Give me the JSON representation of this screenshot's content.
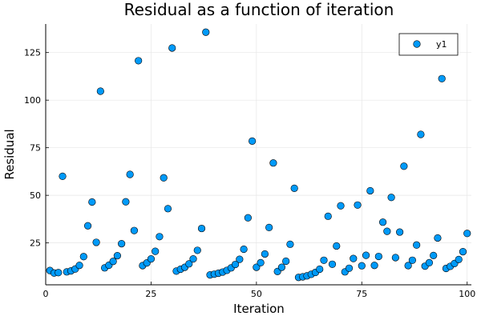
{
  "chart_data": {
    "type": "scatter",
    "title": "Residual as a function of iteration",
    "xlabel": "Iteration",
    "ylabel": "Residual",
    "xlim": [
      0,
      101
    ],
    "ylim": [
      3,
      140
    ],
    "xticks": [
      0,
      25,
      50,
      75,
      100
    ],
    "yticks": [
      25,
      50,
      75,
      100,
      125
    ],
    "grid": true,
    "legend_position": "top-right",
    "series": [
      {
        "name": "y1",
        "color": "#009af9",
        "x": [
          1,
          2,
          3,
          4,
          5,
          6,
          7,
          8,
          9,
          10,
          11,
          12,
          13,
          14,
          15,
          16,
          17,
          18,
          19,
          20,
          21,
          22,
          23,
          24,
          25,
          26,
          27,
          28,
          29,
          30,
          31,
          32,
          33,
          34,
          35,
          36,
          37,
          38,
          39,
          40,
          41,
          42,
          43,
          44,
          45,
          46,
          47,
          48,
          49,
          50,
          51,
          52,
          53,
          54,
          55,
          56,
          57,
          58,
          59,
          60,
          61,
          62,
          63,
          64,
          65,
          66,
          67,
          68,
          69,
          70,
          71,
          72,
          73,
          74,
          75,
          76,
          77,
          78,
          79,
          80,
          81,
          82,
          83,
          84,
          85,
          86,
          87,
          88,
          89,
          90,
          91,
          92,
          93,
          94,
          95,
          96,
          97,
          98,
          99,
          100
        ],
        "y": [
          10.5,
          9.2,
          9.4,
          60,
          9.8,
          10.3,
          11.3,
          13.2,
          17.8,
          34,
          46.5,
          25.3,
          104.7,
          11.9,
          13.3,
          15.3,
          18.3,
          24.6,
          46.6,
          61,
          31.5,
          120.7,
          13.1,
          14.5,
          16.6,
          20.6,
          28.3,
          59.2,
          43,
          127.4,
          10.2,
          11.2,
          12.2,
          14,
          16.6,
          21.1,
          32.6,
          135.7,
          8.2,
          8.6,
          9.1,
          9.7,
          10.6,
          11.9,
          13.7,
          16.4,
          21.7,
          38.2,
          78.5,
          12.2,
          14.6,
          19.2,
          33.1,
          67,
          10,
          12.2,
          15.4,
          24.3,
          53.7,
          6.9,
          7.2,
          7.7,
          8.5,
          9.5,
          11.2,
          15.9,
          39,
          13.8,
          23.4,
          44.5,
          9.8,
          11.7,
          16.8,
          44.9,
          13,
          18.5,
          52.4,
          13.2,
          17.9,
          35.9,
          31.1,
          48.9,
          17.3,
          30.7,
          65.3,
          13.1,
          15.9,
          23.9,
          82,
          12.8,
          14.6,
          18.4,
          27.6,
          111.3,
          11.6,
          12.7,
          14.2,
          16.3,
          20.4,
          30
        ]
      }
    ]
  }
}
